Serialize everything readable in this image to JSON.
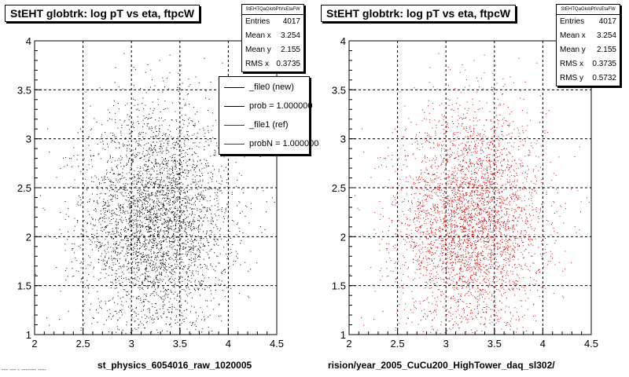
{
  "chart_data": [
    {
      "type": "scatter",
      "title": "StEHT globtrk: log pT vs eta, ftpcW",
      "xlabel": "st_physics_6054016_raw_1020005",
      "ylabel": "",
      "xlim": [
        2,
        4.5
      ],
      "ylim": [
        1,
        4
      ],
      "xticks": [
        "2",
        "2.5",
        "3",
        "3.5",
        "4",
        "4.5"
      ],
      "yticks": [
        "1",
        "1.5",
        "2",
        "2.5",
        "3",
        "3.5",
        "4"
      ],
      "grid": true,
      "marker_color": "#000000",
      "stats": {
        "header": "StEHTQaGlobPtVsEtaFW",
        "rows": [
          {
            "label": "Entries",
            "value": "4017"
          },
          {
            "label": "Mean x",
            "value": "3.254"
          },
          {
            "label": "Mean y",
            "value": "2.155"
          },
          {
            "label": "RMS x",
            "value": "0.3735"
          }
        ]
      },
      "legend": {
        "placement": "top-right",
        "entries": [
          {
            "label": "_file0 (new)",
            "color": "#000000"
          },
          {
            "label": "prob = 1.000000",
            "color": "#000000"
          },
          {
            "label": "_file1 (ref)",
            "color": "#cc0000"
          },
          {
            "label": "probN = 1.000000",
            "color": "#cc0000"
          }
        ]
      },
      "points": {
        "n": 4017,
        "mean_x": 3.254,
        "mean_y": 2.155,
        "rms_x": 0.3735,
        "rms_y": 0.5732
      }
    },
    {
      "type": "scatter",
      "title": "StEHT globtrk: log pT vs eta, ftpcW",
      "xlabel": "rision/year_2005_CuCu200_HighTower_daq_sl302/",
      "ylabel": "",
      "xlim": [
        2,
        4.5
      ],
      "ylim": [
        1,
        4
      ],
      "xticks": [
        "2",
        "2.5",
        "3",
        "3.5",
        "4",
        "4.5"
      ],
      "yticks": [
        "1",
        "1.5",
        "2",
        "2.5",
        "3",
        "3.5",
        "4"
      ],
      "grid": true,
      "marker_color": "#cc0000",
      "stats": {
        "header": "StEHTQaGlobPtVsEtaFW",
        "rows": [
          {
            "label": "Entries",
            "value": "4017"
          },
          {
            "label": "Mean x",
            "value": "3.254"
          },
          {
            "label": "Mean y",
            "value": "2.155"
          },
          {
            "label": "RMS x",
            "value": "0.3735"
          },
          {
            "label": "RMS y",
            "value": "0.5732"
          }
        ]
      },
      "points": {
        "n": 4017,
        "mean_x": 3.254,
        "mean_y": 2.155,
        "rms_x": 0.3735,
        "rms_y": 0.5732
      }
    }
  ],
  "footer": "--- --- - ------- ----"
}
